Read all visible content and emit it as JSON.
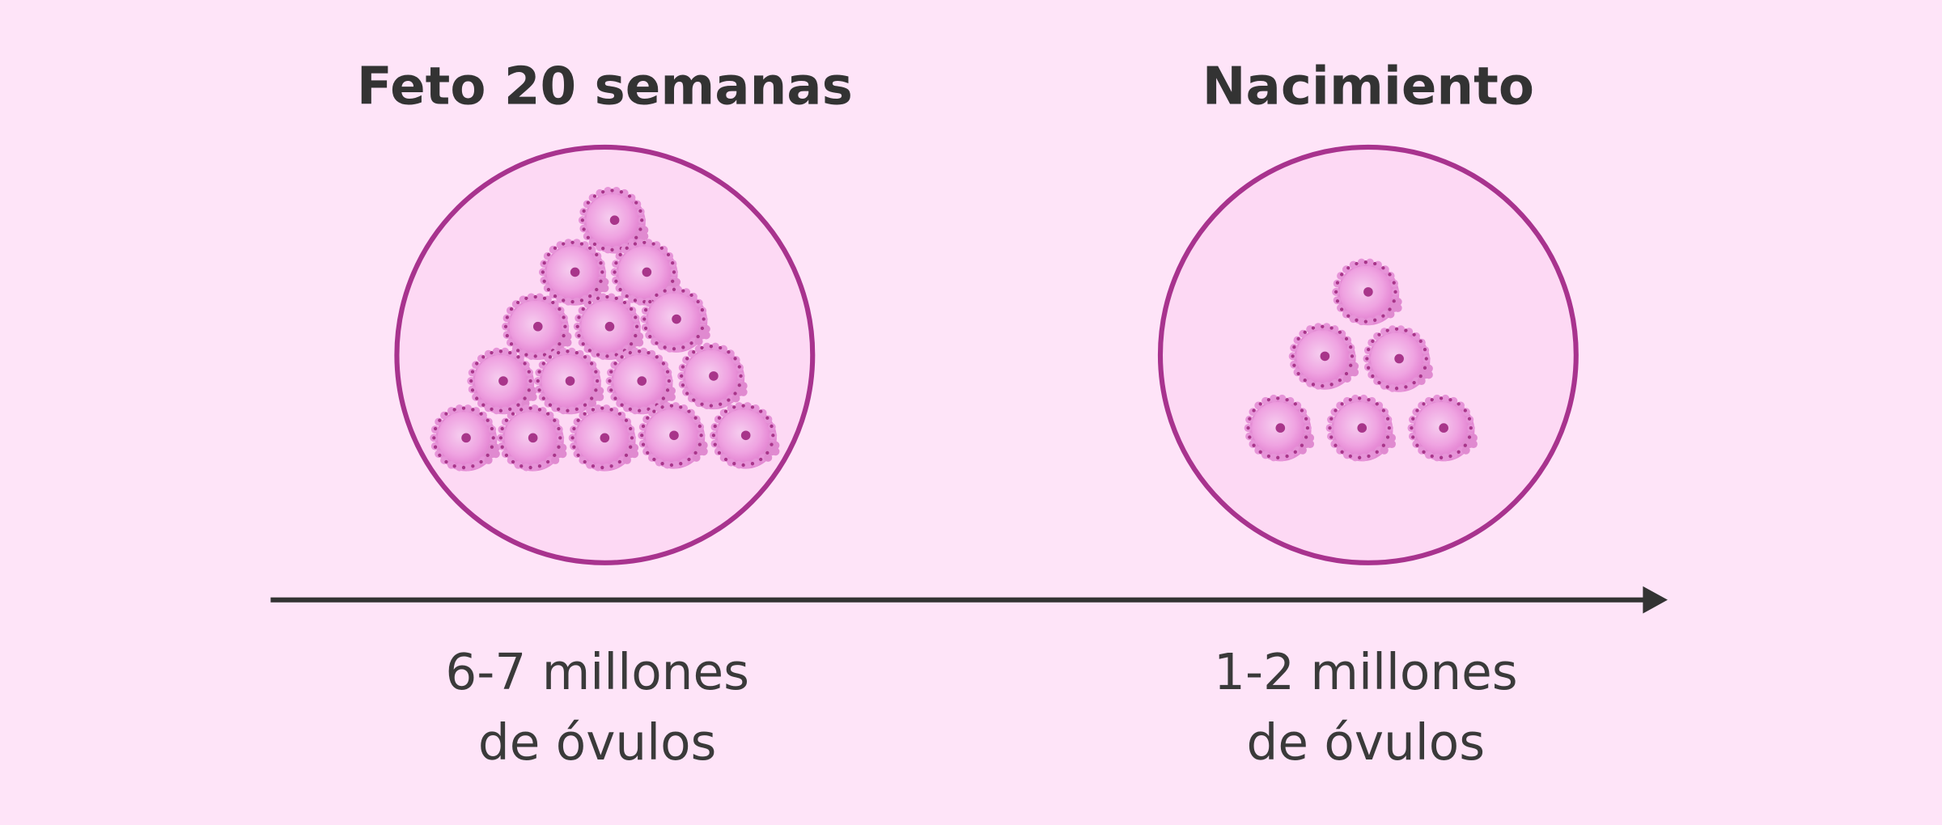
{
  "colors": {
    "background": "#fee4f8",
    "circle_stroke": "#a8338e",
    "circle_fill": "#fdd9f4",
    "cell": "#ef9ee0",
    "nucleus": "#a8358a",
    "arrow": "#333333"
  },
  "stages": [
    {
      "title": "Feto 20 semanas",
      "caption_line1": "6-7 millones",
      "caption_line2": "de óvulos",
      "cell_count": 15
    },
    {
      "title": "Nacimiento",
      "caption_line1": "1-2 millones",
      "caption_line2": "de óvulos",
      "cell_count": 6
    }
  ]
}
